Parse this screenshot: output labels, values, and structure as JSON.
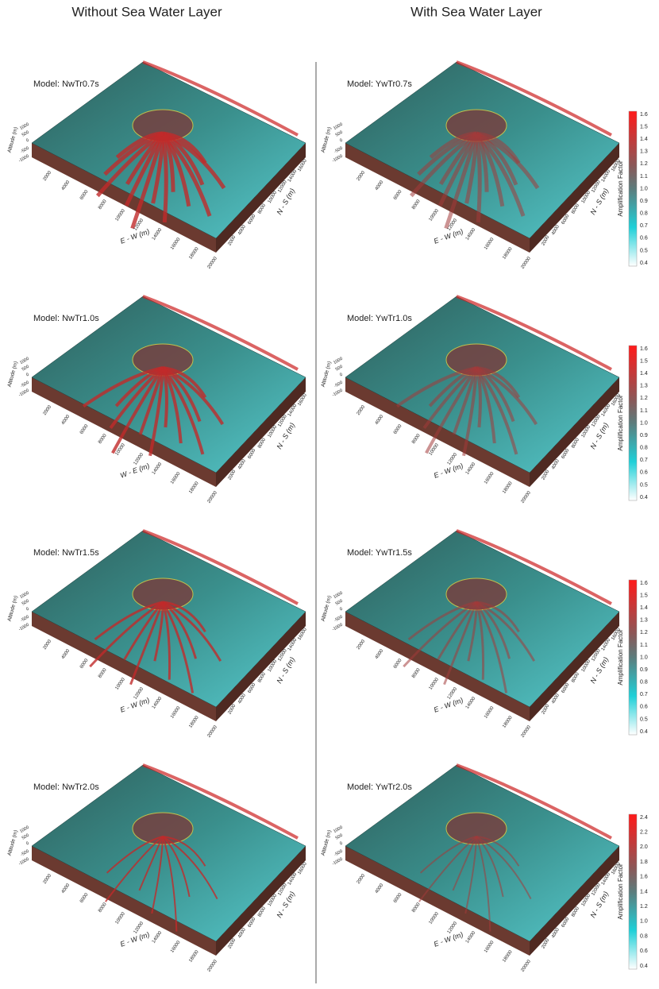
{
  "headers": [
    "Without Sea Water Layer",
    "With Sea Water Layer"
  ],
  "panels": [
    {
      "model": "Model: NwTr0.7s",
      "ew_label": "E - W (m)"
    },
    {
      "model": "Model: YwTr0.7s",
      "ew_label": "E - W (m)"
    },
    {
      "model": "Model: NwTr1.0s",
      "ew_label": "W - E (m)"
    },
    {
      "model": "Model: YwTr1.0s",
      "ew_label": "E - W (m)"
    },
    {
      "model": "Model: NwTr1.5s",
      "ew_label": "E - W (m)"
    },
    {
      "model": "Model: YwTr1.5s",
      "ew_label": "E - W (m)"
    },
    {
      "model": "Model: NwTr2.0s",
      "ew_label": "E - W (m)"
    },
    {
      "model": "Model: YwTr2.0s",
      "ew_label": "E - W (m)"
    }
  ],
  "axes": {
    "altitude_label": "Altitude (m)",
    "ns_label": "N - S (m)",
    "altitude_ticks": [
      "1000",
      "500",
      "0",
      "-500",
      "-1000"
    ],
    "ew_ticks": [
      "2000",
      "4000",
      "6000",
      "8000",
      "10000",
      "12000",
      "14000",
      "16000",
      "18000",
      "20000"
    ],
    "ns_ticks": [
      "2000",
      "4000",
      "6000",
      "8000",
      "10000",
      "12000",
      "14000",
      "16000"
    ]
  },
  "colorbars": [
    {
      "label": "Amplification Factor",
      "ticks": [
        "1.6",
        "1.5",
        "1.4",
        "1.3",
        "1.2",
        "1.1",
        "1.0",
        "0.9",
        "0.8",
        "0.7",
        "0.6",
        "0.5",
        "0.4"
      ]
    },
    {
      "label": "Amplification Factor",
      "ticks": [
        "1.6",
        "1.5",
        "1.4",
        "1.3",
        "1.2",
        "1.1",
        "1.0",
        "0.9",
        "0.8",
        "0.7",
        "0.6",
        "0.5",
        "0.4"
      ]
    },
    {
      "label": "Amplification Factor",
      "ticks": [
        "1.6",
        "1.5",
        "1.4",
        "1.3",
        "1.2",
        "1.1",
        "1.0",
        "0.9",
        "0.8",
        "0.7",
        "0.6",
        "0.5",
        "0.4"
      ]
    },
    {
      "label": "Amplification Factor",
      "ticks": [
        "2.4",
        "2.2",
        "2.0",
        "1.8",
        "1.6",
        "1.4",
        "1.2",
        "1.0",
        "0.8",
        "0.6",
        "0.4"
      ]
    }
  ]
}
